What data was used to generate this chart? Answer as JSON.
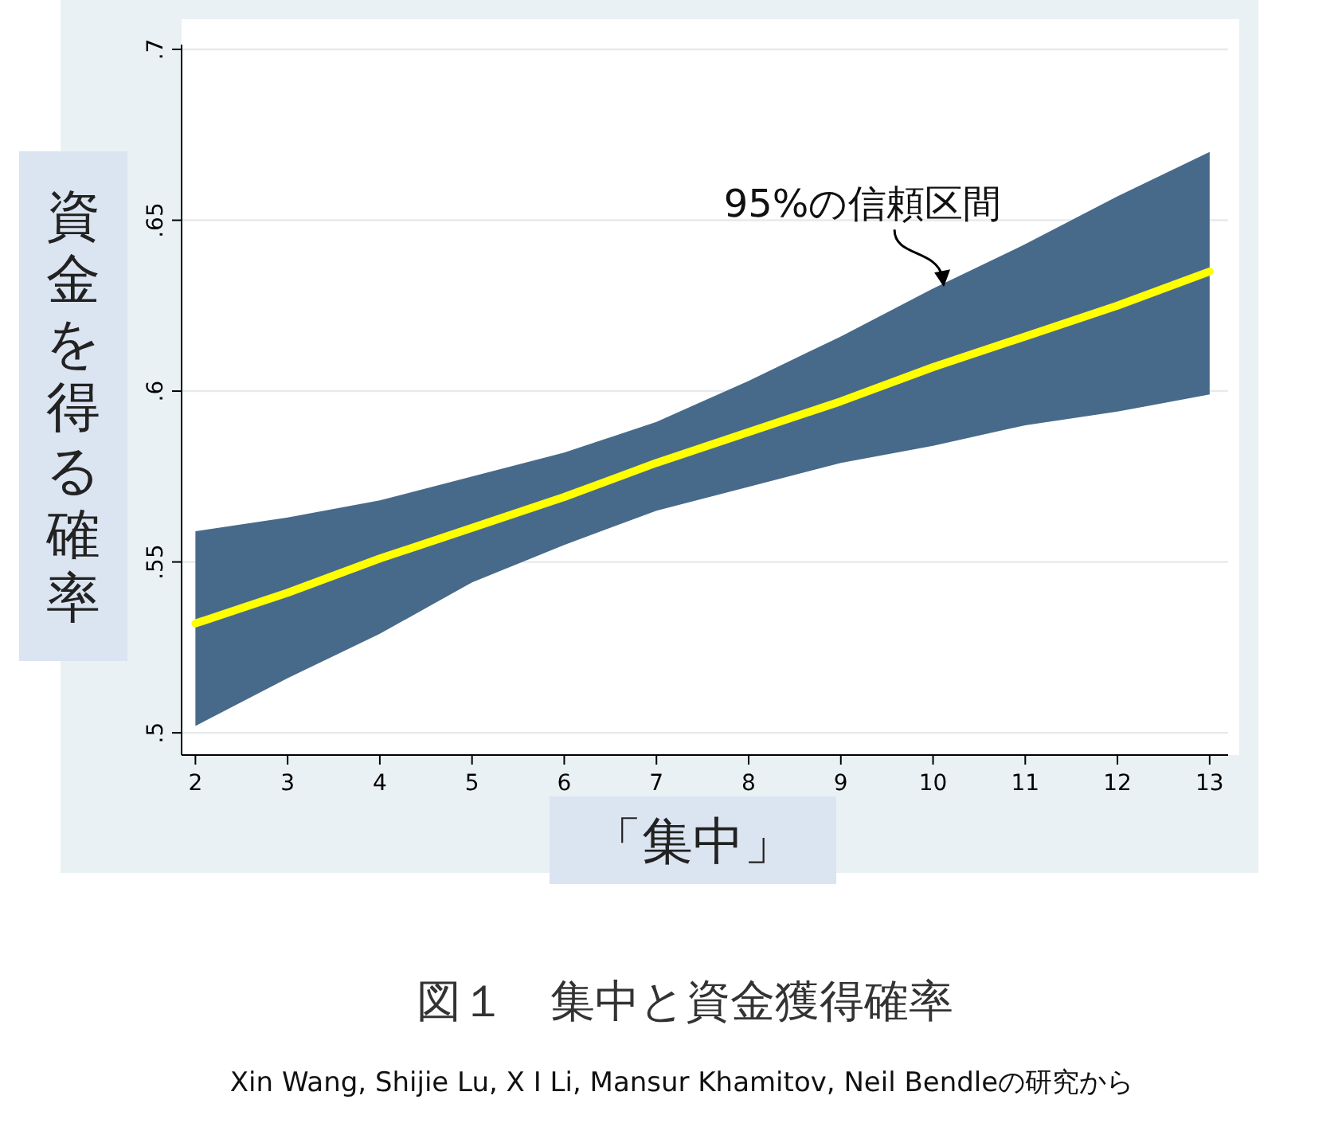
{
  "chart_data": {
    "type": "line",
    "title": "図１　集中と資金獲得確率",
    "xlabel": "「集中」",
    "ylabel": "資金を得る確率",
    "annotations": [
      {
        "text": "95%の信頼区間",
        "x": 10.1,
        "y": 0.63
      },
      "Xin Wang, Shijie Lu, X I Li, Mansur Khamitov, Neil Bendleの研究から"
    ],
    "x": [
      2,
      3,
      4,
      5,
      6,
      7,
      8,
      9,
      10,
      11,
      12,
      13
    ],
    "series": [
      {
        "color": "#ffff00",
        "values": [
          0.532,
          0.541,
          0.551,
          0.56,
          0.569,
          0.579,
          0.588,
          0.597,
          0.607,
          0.616,
          0.625,
          0.635
        ],
        "lower": [
          0.502,
          0.516,
          0.529,
          0.544,
          0.555,
          0.565,
          0.572,
          0.579,
          0.584,
          0.59,
          0.594,
          0.599
        ],
        "upper": [
          0.559,
          0.563,
          0.568,
          0.575,
          0.582,
          0.591,
          0.603,
          0.616,
          0.63,
          0.643,
          0.657,
          0.67
        ]
      }
    ],
    "xlim": [
      1.85,
      13.2
    ],
    "ylim": [
      0.4935,
      0.7
    ],
    "xticks": [
      2,
      3,
      4,
      5,
      6,
      7,
      8,
      9,
      10,
      11,
      12,
      13
    ],
    "yticks": [
      {
        "value": 0.5,
        "label": ".5"
      },
      {
        "value": 0.55,
        "label": ".55"
      },
      {
        "value": 0.6,
        "label": ".6"
      },
      {
        "value": 0.65,
        "label": ".65"
      },
      {
        "value": 0.7,
        "label": ".7"
      }
    ],
    "grid": "y"
  }
}
